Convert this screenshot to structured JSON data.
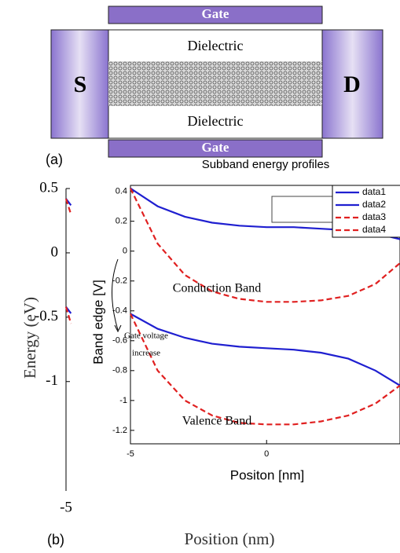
{
  "diagram": {
    "gate_top": "Gate",
    "dielectric_top": "Dielectric",
    "dielectric_bottom": "Dielectric",
    "gate_bottom": "Gate",
    "source": "S",
    "drain": "D",
    "panel": "(a)"
  },
  "panel_b": "(b)",
  "chart_data": [
    {
      "type": "line",
      "ylabel": "Energy (eV)",
      "xlabel": "Position (nm)",
      "xlim": [
        -5,
        5
      ],
      "ylim": [
        -1.85,
        0.5
      ],
      "xticks": [
        -5
      ],
      "yticks": [
        0.5,
        0,
        -0.5,
        -1
      ],
      "x": [
        -5,
        -4.8
      ],
      "series": [
        {
          "color": "#1f1fd0",
          "dash": false,
          "values": [
            0.42,
            0.37
          ]
        },
        {
          "color": "#e02020",
          "dash": true,
          "values": [
            0.42,
            0.3
          ]
        },
        {
          "color": "#1f1fd0",
          "dash": false,
          "values": [
            -0.42,
            -0.47
          ]
        },
        {
          "color": "#e02020",
          "dash": true,
          "values": [
            -0.42,
            -0.55
          ]
        }
      ]
    },
    {
      "type": "line",
      "title": "Subband energy profiles",
      "xlabel": "Positon [nm]",
      "ylabel": "Band edge [V]",
      "xlim": [
        -5,
        4.9
      ],
      "ylim": [
        -1.29,
        0.44
      ],
      "xticks": [
        -5,
        0
      ],
      "yticks": [
        0.4,
        0.2,
        0,
        -0.2,
        -0.4,
        -0.6,
        -0.8,
        -1,
        -1.2
      ],
      "annotations": [
        "Conduction Band",
        "Valence Band",
        "Gate voltage",
        "increase"
      ],
      "legend": "upper right",
      "x": [
        -5,
        -4,
        -3,
        -2,
        -1,
        0,
        1,
        2,
        3,
        4,
        4.9
      ],
      "series": [
        {
          "name": "data1",
          "color": "#1f1fd0",
          "dash": false,
          "values": [
            0.42,
            0.3,
            0.23,
            0.19,
            0.17,
            0.16,
            0.16,
            0.15,
            0.14,
            0.12,
            0.08
          ]
        },
        {
          "name": "data2",
          "color": "#1f1fd0",
          "dash": false,
          "values": [
            -0.42,
            -0.52,
            -0.58,
            -0.62,
            -0.64,
            -0.65,
            -0.66,
            -0.68,
            -0.72,
            -0.8,
            -0.9
          ]
        },
        {
          "name": "data3",
          "color": "#e02020",
          "dash": true,
          "values": [
            0.42,
            0.05,
            -0.16,
            -0.27,
            -0.32,
            -0.34,
            -0.34,
            -0.33,
            -0.3,
            -0.22,
            -0.08
          ]
        },
        {
          "name": "data4",
          "color": "#e02020",
          "dash": true,
          "values": [
            -0.42,
            -0.8,
            -1.0,
            -1.1,
            -1.15,
            -1.16,
            -1.16,
            -1.14,
            -1.1,
            -1.02,
            -0.9
          ]
        }
      ]
    }
  ]
}
